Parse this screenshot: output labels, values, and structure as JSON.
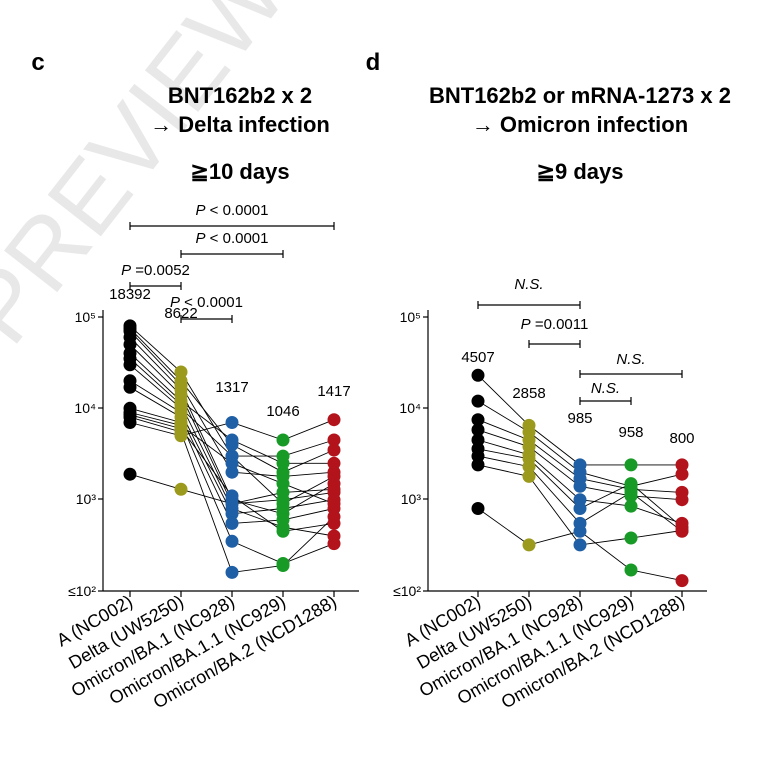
{
  "watermark": "PREVIEW",
  "chart_data": [
    {
      "type": "scatter",
      "panel_label": "c",
      "title_lines": [
        "BNT162b2 x 2",
        "→ Delta infection"
      ],
      "subtitle": "≧10 days",
      "categories": [
        "A (NC002)",
        "Delta (UW5250)",
        "Omicron/BA.1 (NC928)",
        "Omicron/BA.1.1 (NC929)",
        "Omicron/BA.2 (NCD1288)"
      ],
      "category_colors": [
        "#000000",
        "#9c9a1c",
        "#1f5fa6",
        "#189a26",
        "#b3141c"
      ],
      "y_scale": "log",
      "ylim": [
        100,
        100000
      ],
      "y_ticks": [
        "≤10²",
        "10³",
        "10⁴",
        "10⁵"
      ],
      "summary_labels": [
        "18392",
        "8622",
        "1317",
        "1046",
        "1417"
      ],
      "series": [
        {
          "values": [
            80000,
            25000,
            3000,
            3000,
            4500
          ]
        },
        {
          "values": [
            75000,
            20000,
            4000,
            2000,
            3500
          ]
        },
        {
          "values": [
            70000,
            18000,
            2000,
            1800,
            2000
          ]
        },
        {
          "values": [
            60000,
            16000,
            1000,
            700,
            1500
          ]
        },
        {
          "values": [
            50000,
            14000,
            900,
            1000,
            1200
          ]
        },
        {
          "values": [
            40000,
            12000,
            4500,
            2500,
            2500
          ]
        },
        {
          "values": [
            35000,
            11000,
            800,
            500,
            400
          ]
        },
        {
          "values": [
            30000,
            10000,
            3000,
            900,
            1800
          ]
        },
        {
          "values": [
            20000,
            9000,
            700,
            800,
            1000
          ]
        },
        {
          "values": [
            17000,
            8000,
            550,
            600,
            800
          ]
        },
        {
          "values": [
            10000,
            7000,
            350,
            200,
            330
          ]
        },
        {
          "values": [
            9000,
            6500,
            2500,
            1500,
            900
          ]
        },
        {
          "values": [
            8500,
            6000,
            1100,
            450,
            550
          ]
        },
        {
          "values": [
            8000,
            5500,
            160,
            190,
            650
          ]
        },
        {
          "values": [
            7000,
            5000,
            7000,
            4500,
            7500
          ]
        },
        {
          "values": [
            1900,
            1300,
            900,
            1200,
            1300
          ]
        }
      ],
      "comparisons": [
        {
          "from": 0,
          "to": 4,
          "label_p": "P",
          "label_rest": " < 0.0001"
        },
        {
          "from": 1,
          "to": 3,
          "label_p": "P",
          "label_rest": " < 0.0001"
        },
        {
          "from": 0,
          "to": 1,
          "label_p": "P",
          "label_rest": " =0.0052"
        },
        {
          "from": 1,
          "to": 2,
          "label_p": "P",
          "label_rest": " < 0.0001"
        }
      ]
    },
    {
      "type": "scatter",
      "panel_label": "d",
      "title_lines": [
        "BNT162b2 or mRNA-1273 x 2",
        "→ Omicron infection"
      ],
      "subtitle": "≧9 days",
      "categories": [
        "A (NC002)",
        "Delta (UW5250)",
        "Omicron/BA.1 (NC928)",
        "Omicron/BA.1.1 (NC929)",
        "Omicron/BA.2 (NCD1288)"
      ],
      "category_colors": [
        "#000000",
        "#9c9a1c",
        "#1f5fa6",
        "#189a26",
        "#b3141c"
      ],
      "y_scale": "log",
      "ylim": [
        100,
        100000
      ],
      "y_ticks": [
        "≤10²",
        "10³",
        "10⁴",
        "10⁵"
      ],
      "summary_labels": [
        "4507",
        "2858",
        "985",
        "958",
        "800"
      ],
      "series": [
        {
          "values": [
            23000,
            6500,
            2400,
            2400,
            2400
          ]
        },
        {
          "values": [
            12000,
            5500,
            2000,
            1400,
            1900
          ]
        },
        {
          "values": [
            7500,
            4500,
            1700,
            1300,
            1200
          ]
        },
        {
          "values": [
            5800,
            3800,
            1400,
            1100,
            1000
          ]
        },
        {
          "values": [
            4500,
            3100,
            1000,
            850,
            550
          ]
        },
        {
          "values": [
            3600,
            2800,
            800,
            1500,
            500
          ]
        },
        {
          "values": [
            3000,
            2300,
            550,
            1200,
            450
          ]
        },
        {
          "values": [
            2400,
            1800,
            320,
            380,
            460
          ]
        },
        {
          "values": [
            800,
            320,
            450,
            170,
            130
          ]
        }
      ],
      "comparisons": [
        {
          "from": 0,
          "to": 2,
          "label_p": "N.S.",
          "label_rest": ""
        },
        {
          "from": 1,
          "to": 2,
          "label_p": "P",
          "label_rest": " =0.0011"
        },
        {
          "from": 2,
          "to": 4,
          "label_p": "N.S.",
          "label_rest": ""
        },
        {
          "from": 2,
          "to": 3,
          "label_p": "N.S.",
          "label_rest": ""
        }
      ]
    }
  ]
}
